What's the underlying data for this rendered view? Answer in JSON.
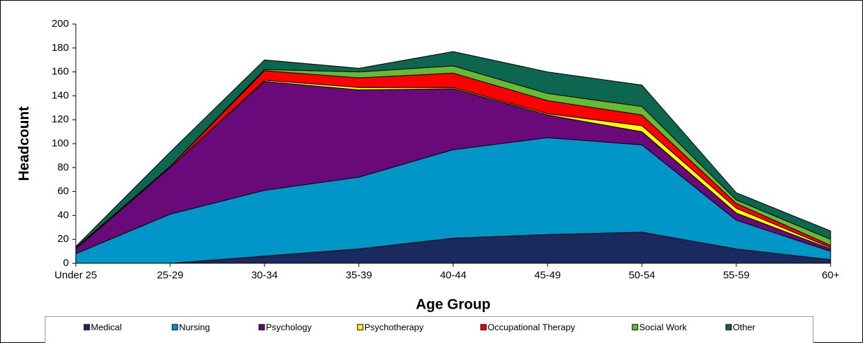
{
  "chart_data": {
    "type": "stacked_area",
    "x_label": "Age Group",
    "y_label": "Headcount",
    "categories": [
      "Under 25",
      "25-29",
      "30-34",
      "35-39",
      "40-44",
      "45-49",
      "50-54",
      "55-59",
      "60+"
    ],
    "series": [
      {
        "name": "Medical",
        "color": "#1a2a5e",
        "values": [
          0,
          0,
          6,
          12,
          21,
          24,
          26,
          12,
          3
        ]
      },
      {
        "name": "Nursing",
        "color": "#0096c8",
        "values": [
          8,
          41,
          55,
          60,
          74,
          81,
          73,
          24,
          7
        ]
      },
      {
        "name": "Psychology",
        "color": "#6a0a7a",
        "values": [
          4,
          39,
          91,
          73,
          51,
          19,
          11,
          6,
          2
        ]
      },
      {
        "name": "Psychotherapy",
        "color": "#ffff00",
        "values": [
          0,
          0,
          1,
          2,
          1,
          1,
          5,
          4,
          1
        ]
      },
      {
        "name": "Occupational Therapy",
        "color": "#ff0000",
        "values": [
          1,
          1,
          8,
          8,
          12,
          11,
          9,
          4,
          2
        ]
      },
      {
        "name": "Social Work",
        "color": "#66bb33",
        "values": [
          0,
          0,
          1,
          5,
          6,
          6,
          7,
          3,
          5
        ]
      },
      {
        "name": "Other",
        "color": "#0d6650",
        "values": [
          1,
          12,
          8,
          3,
          12,
          18,
          18,
          6,
          7
        ]
      }
    ],
    "ylim": [
      0,
      200
    ],
    "yticks": [
      0,
      20,
      40,
      60,
      80,
      100,
      120,
      140,
      160,
      180,
      200
    ],
    "legend": "bottom"
  }
}
